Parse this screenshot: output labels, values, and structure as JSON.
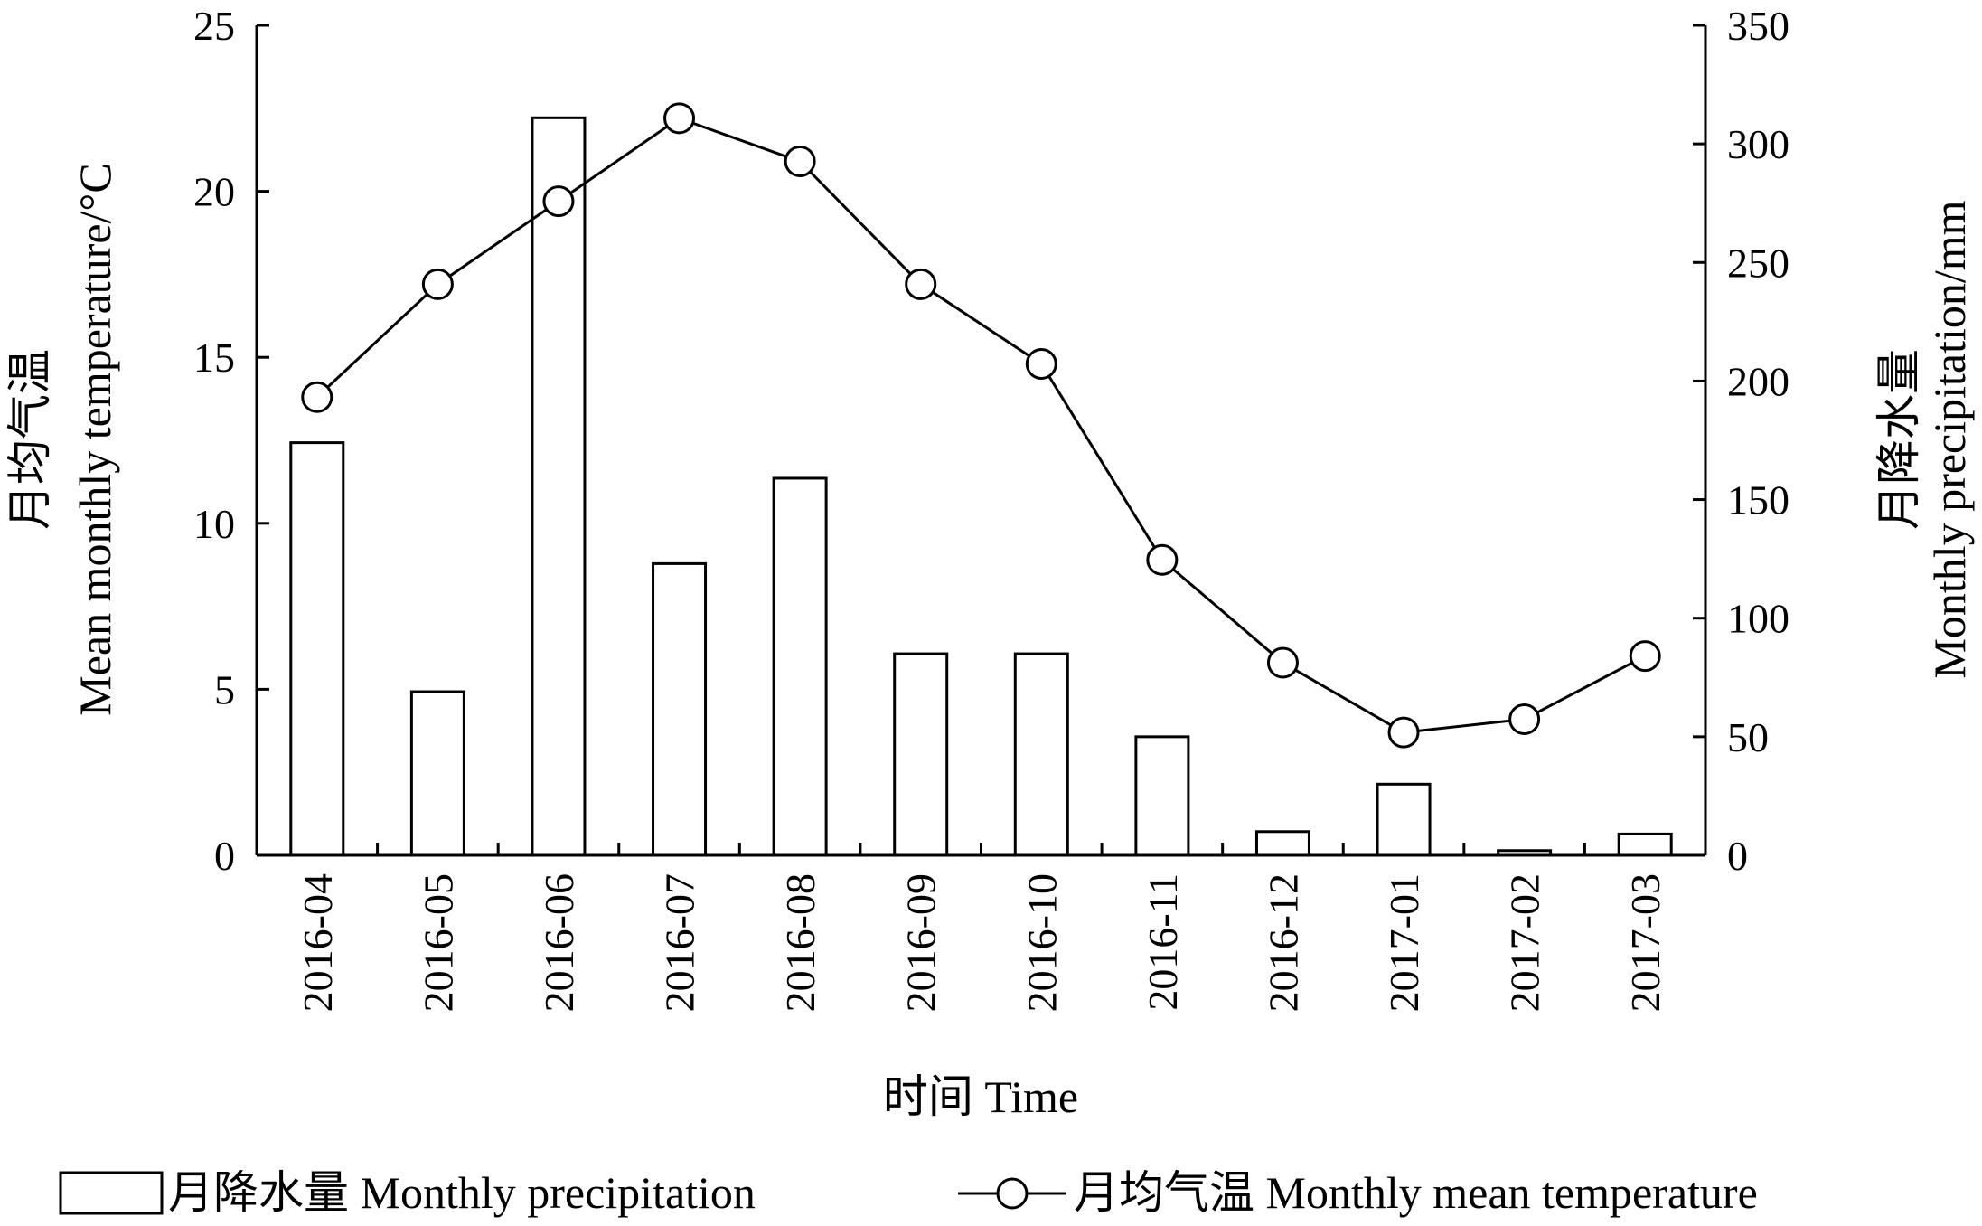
{
  "chart_data": {
    "type": "bar+line",
    "categories": [
      "2016-04",
      "2016-05",
      "2016-06",
      "2016-07",
      "2016-08",
      "2016-09",
      "2016-10",
      "2016-11",
      "2016-12",
      "2017-01",
      "2017-02",
      "2017-03"
    ],
    "series": [
      {
        "name": "月降水量 Monthly precipitation",
        "type": "bar",
        "axis": "right",
        "values": [
          174,
          69,
          311,
          123,
          159,
          85,
          85,
          50,
          10,
          30,
          2,
          9
        ]
      },
      {
        "name": "月均气温 Monthly mean temperature",
        "type": "line",
        "axis": "left",
        "values": [
          13.8,
          17.2,
          19.7,
          22.2,
          20.9,
          17.2,
          14.8,
          8.9,
          5.8,
          3.7,
          4.1,
          6.0
        ]
      }
    ],
    "xlabel": "时间  Time",
    "ylabel_left": [
      "月均气温",
      "Mean monthly temperature/°C"
    ],
    "ylabel_right": [
      "月降水量",
      "Monthly precipitation/mm"
    ],
    "ylim_left": [
      0,
      25
    ],
    "ylim_right": [
      0,
      350
    ],
    "yticks_left": [
      0,
      5,
      10,
      15,
      20,
      25
    ],
    "yticks_right": [
      0,
      50,
      100,
      150,
      200,
      250,
      300,
      350
    ],
    "grid": false,
    "legend": {
      "placement": "bottom",
      "items": [
        {
          "label": "月降水量  Monthly precipitation",
          "marker": "bar"
        },
        {
          "label": "月均气温  Monthly mean temperature",
          "marker": "line-circle"
        }
      ]
    },
    "colors": {
      "bar_fill": "#ffffff",
      "stroke": "#000000",
      "marker_fill": "#ffffff"
    }
  }
}
